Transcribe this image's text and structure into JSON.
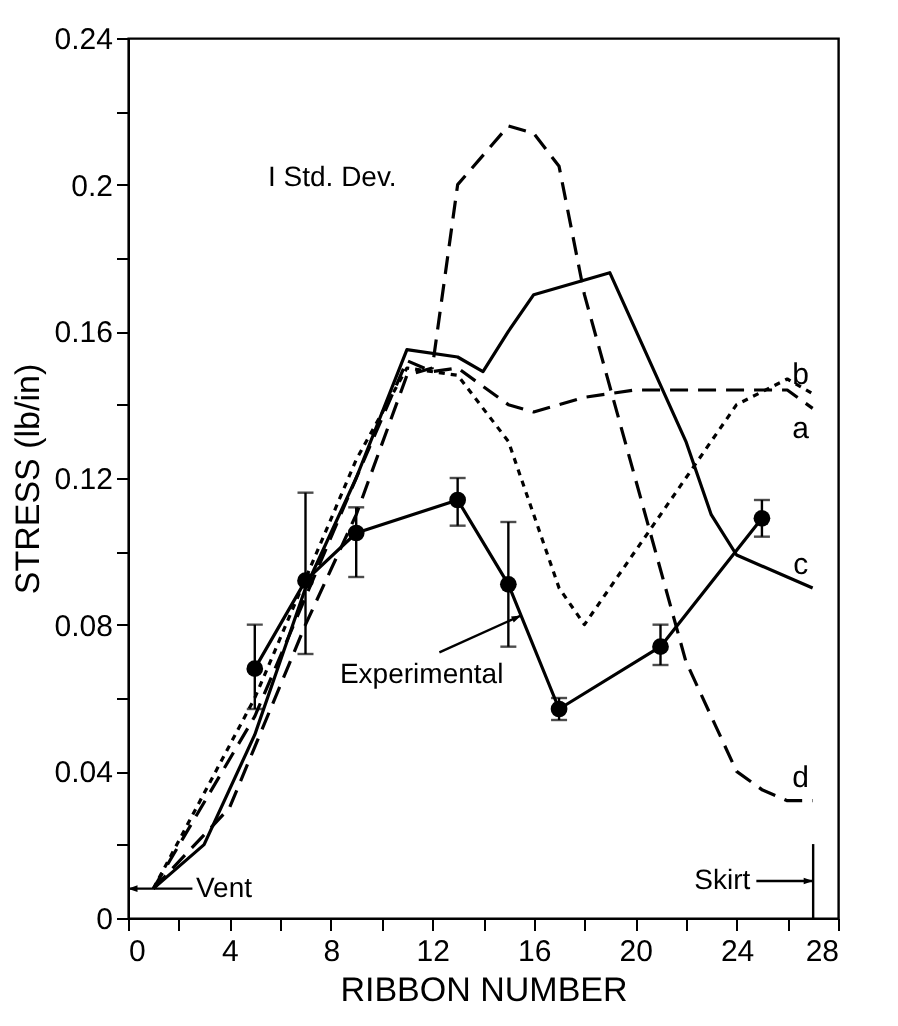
{
  "chart_data": {
    "type": "line",
    "xlabel": "RIBBON NUMBER",
    "ylabel": "STRESS (lb/in)",
    "xlim": [
      0,
      28
    ],
    "xticks": [
      0,
      {
        "value": 2,
        "label": null
      },
      4,
      {
        "value": 6,
        "label": null
      },
      8,
      {
        "value": 10,
        "label": null
      },
      12,
      {
        "value": 14,
        "label": null
      },
      16,
      {
        "value": 18,
        "label": null
      },
      20,
      {
        "value": 22,
        "label": null
      },
      24,
      {
        "value": 26,
        "label": null
      },
      28
    ],
    "ylim": [
      0,
      0.24
    ],
    "yticks": [
      0,
      {
        "value": 0.02,
        "label": null
      },
      0.04,
      {
        "value": 0.06,
        "label": null
      },
      0.08,
      {
        "value": 0.1,
        "label": null
      },
      0.12,
      {
        "value": 0.14,
        "label": null
      },
      0.16,
      {
        "value": 0.18,
        "label": null
      },
      0.2,
      {
        "value": 0.22,
        "label": null
      },
      0.24
    ],
    "grid": false,
    "series": [
      {
        "name": "a",
        "color": "#000000",
        "line_style": "dashed",
        "marker": "none",
        "x": [
          1,
          5,
          9,
          11,
          12,
          13,
          15,
          16,
          18,
          20,
          26,
          27
        ],
        "values": [
          0.008,
          0.055,
          0.12,
          0.152,
          0.149,
          0.15,
          0.14,
          0.138,
          0.142,
          0.144,
          0.144,
          0.139
        ]
      },
      {
        "name": "b",
        "color": "#000000",
        "line_style": "dotted",
        "marker": "none",
        "x": [
          1,
          5,
          9,
          11,
          13,
          15,
          17,
          18,
          20,
          22,
          24,
          26,
          27
        ],
        "values": [
          0.008,
          0.06,
          0.125,
          0.15,
          0.148,
          0.13,
          0.09,
          0.08,
          0.1,
          0.12,
          0.14,
          0.147,
          0.143
        ]
      },
      {
        "name": "c",
        "color": "#000000",
        "line_style": "solid",
        "marker": "none",
        "x": [
          1,
          3,
          5,
          7,
          9,
          11,
          13,
          14,
          15,
          16,
          19,
          22,
          23,
          24,
          26,
          27
        ],
        "values": [
          0.008,
          0.02,
          0.05,
          0.09,
          0.12,
          0.155,
          0.153,
          0.149,
          0.16,
          0.17,
          0.176,
          0.13,
          0.11,
          0.099,
          0.093,
          0.09
        ]
      },
      {
        "name": "d",
        "color": "#000000",
        "line_style": "dashed",
        "marker": "none",
        "x": [
          1,
          4,
          7,
          9,
          11,
          12,
          13,
          15,
          16,
          17,
          18,
          20,
          22,
          24,
          25,
          26,
          27
        ],
        "values": [
          0.008,
          0.03,
          0.08,
          0.11,
          0.148,
          0.15,
          0.2,
          0.216,
          0.214,
          0.205,
          0.17,
          0.12,
          0.07,
          0.04,
          0.035,
          0.032,
          0.032
        ]
      },
      {
        "color": "#000000",
        "line_style": "solid",
        "marker": "circle",
        "x": [
          5,
          7,
          9,
          13,
          15,
          17,
          21,
          25
        ],
        "values": [
          0.068,
          0.092,
          0.105,
          0.114,
          0.091,
          0.057,
          0.074,
          0.109
        ],
        "errors": [
          [
            0.057,
            0.08
          ],
          [
            0.072,
            0.116
          ],
          [
            0.093,
            0.112
          ],
          [
            0.107,
            0.12
          ],
          [
            0.074,
            0.108
          ],
          [
            0.054,
            0.06
          ],
          [
            0.069,
            0.08
          ],
          [
            0.104,
            0.114
          ]
        ]
      }
    ],
    "annotations": [
      "I  Std. Dev.",
      {
        "text": "Experimental",
        "x": 15.5,
        "y": 0.0825
      },
      {
        "text": "Vent",
        "x": 1,
        "y": 0.008
      },
      "Skirt"
    ]
  }
}
